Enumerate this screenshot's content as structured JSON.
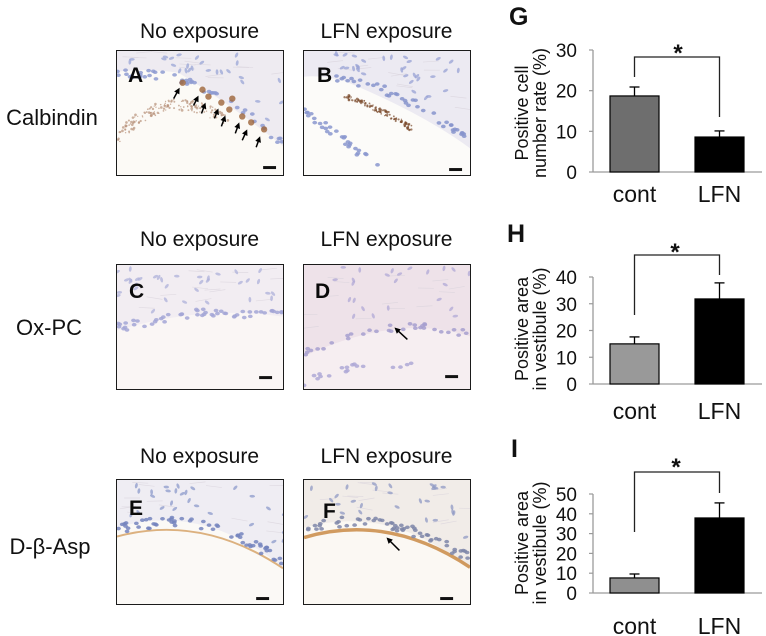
{
  "figure": {
    "columns": [
      "No exposure",
      "LFN exposure"
    ],
    "rows": [
      {
        "label": "Calbindin",
        "panels": [
          {
            "letter": "A",
            "arrows": [
              {
                "tail": [
                  57,
                  48
                ],
                "tip": [
                  63,
                  37
                ]
              },
              {
                "tail": [
                  77,
                  55
                ],
                "tip": [
                  82,
                  45
                ]
              },
              {
                "tail": [
                  85,
                  63
                ],
                "tip": [
                  89,
                  52
                ]
              },
              {
                "tail": [
                  98,
                  68
                ],
                "tip": [
                  102,
                  58
                ]
              },
              {
                "tail": [
                  105,
                  76
                ],
                "tip": [
                  109,
                  65
                ]
              },
              {
                "tail": [
                  119,
                  83
                ],
                "tip": [
                  123,
                  72
                ]
              },
              {
                "tail": [
                  126,
                  90
                ],
                "tip": [
                  131,
                  79
                ]
              },
              {
                "tail": [
                  140,
                  97
                ],
                "tip": [
                  144,
                  86
                ]
              }
            ]
          },
          {
            "letter": "B",
            "arrows": []
          }
        ]
      },
      {
        "label": "Ox-PC",
        "panels": [
          {
            "letter": "C",
            "arrows": []
          },
          {
            "letter": "D",
            "arrows": [
              {
                "tail": [
                  104,
                  75
                ],
                "tip": [
                  91,
                  63
                ]
              }
            ]
          }
        ]
      },
      {
        "label": "D-β-Asp",
        "panels": [
          {
            "letter": "E",
            "arrows": []
          },
          {
            "letter": "F",
            "arrows": [
              {
                "tail": [
                  96,
                  71
                ],
                "tip": [
                  83,
                  58
                ]
              }
            ]
          }
        ]
      }
    ]
  },
  "chart_data": [
    {
      "panel": "G",
      "type": "bar",
      "title": "",
      "categories": [
        "cont",
        "LFN"
      ],
      "values": [
        18.7,
        8.6
      ],
      "errors": [
        2.2,
        1.5
      ],
      "xlabel": "",
      "ylabel": "Positive cell number rate (%)",
      "ylabel_lines": [
        "Positive cell",
        "number rate (%)"
      ],
      "ylim": [
        0,
        30
      ],
      "yticks": [
        0,
        10,
        20,
        30
      ],
      "grid": false,
      "legend": null,
      "colors": [
        "#6e6e6e",
        "#000000"
      ],
      "significance": {
        "between": [
          "cont",
          "LFN"
        ],
        "label": "*"
      }
    },
    {
      "panel": "H",
      "type": "bar",
      "title": "",
      "categories": [
        "cont",
        "LFN"
      ],
      "values": [
        15.0,
        31.8
      ],
      "errors": [
        2.6,
        6.0
      ],
      "xlabel": "",
      "ylabel": "Positive area in vestibule (%)",
      "ylabel_lines": [
        "Positive area",
        "in vestibule (%)"
      ],
      "ylim": [
        0,
        40
      ],
      "yticks": [
        0,
        10,
        20,
        30,
        40
      ],
      "grid": false,
      "legend": null,
      "colors": [
        "#999999",
        "#000000"
      ],
      "significance": {
        "between": [
          "cont",
          "LFN"
        ],
        "label": "*"
      }
    },
    {
      "panel": "I",
      "type": "bar",
      "title": "",
      "categories": [
        "cont",
        "LFN"
      ],
      "values": [
        7.6,
        37.9
      ],
      "errors": [
        2.0,
        7.6
      ],
      "xlabel": "",
      "ylabel": "Positive area in vestibule (%)",
      "ylabel_lines": [
        "Positive area",
        "in vestibule (%)"
      ],
      "ylim": [
        0,
        50
      ],
      "yticks": [
        0,
        10,
        20,
        30,
        40,
        50
      ],
      "grid": false,
      "legend": null,
      "colors": [
        "#8f8f8f",
        "#000000"
      ],
      "significance": {
        "between": [
          "cont",
          "LFN"
        ],
        "label": "*"
      }
    }
  ]
}
